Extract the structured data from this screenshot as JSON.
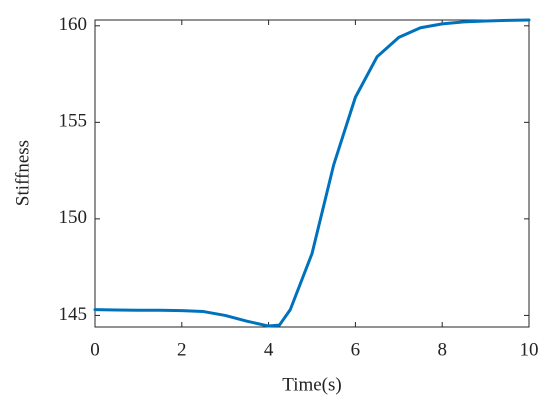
{
  "chart_data": {
    "type": "line",
    "x_label": "Time(s)",
    "y_label": "Stiffness",
    "x": [
      0,
      0.5,
      1,
      1.5,
      2,
      2.5,
      3,
      3.5,
      4,
      4.25,
      4.5,
      5,
      5.5,
      6,
      6.5,
      7,
      7.5,
      8,
      8.5,
      9,
      9.5,
      10
    ],
    "series": [
      {
        "name": "Stiffness",
        "color": "#0072bd",
        "values": [
          145.3,
          145.28,
          145.27,
          145.27,
          145.25,
          145.2,
          145.0,
          144.7,
          144.45,
          144.5,
          145.3,
          148.2,
          152.8,
          156.3,
          158.4,
          159.4,
          159.9,
          160.1,
          160.2,
          160.25,
          160.28,
          160.3
        ]
      }
    ],
    "xlim": [
      0,
      10
    ],
    "xticks": [
      0,
      2,
      4,
      6,
      8,
      10
    ],
    "ylim": [
      144.4,
      160.3
    ],
    "yticks": [
      145,
      150,
      155,
      160
    ],
    "grid": false
  }
}
